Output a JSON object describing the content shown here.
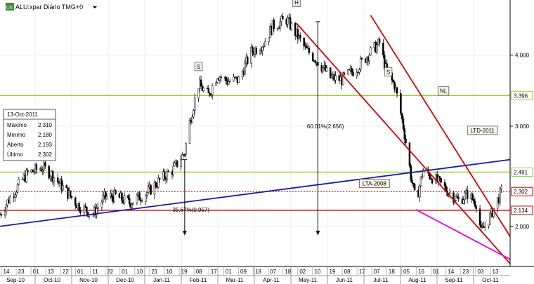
{
  "header": {
    "icon_text": "CEI",
    "title": "ALU:xpar Diário TMG+0",
    "menu_icon": "dropdown-arrow-icon"
  },
  "info_box": {
    "date": "13-Oct-2011",
    "rows": [
      {
        "label": "Máximo",
        "value": "2.310",
        "color": "#000000"
      },
      {
        "label": "Mínimo",
        "value": "2.180",
        "color": "#000000"
      },
      {
        "label": "Aberto",
        "value": "2.193",
        "color": "#000000"
      },
      {
        "label": "Último",
        "value": "2.302",
        "color": "#cc0000"
      }
    ]
  },
  "annotations": {
    "H": "H",
    "S1": "S",
    "S2": "S",
    "NL": "NL",
    "LTD": "LTD-2011",
    "LTA": "LTA-2008",
    "drop1": "60.01%(2.656)",
    "drop2": "35.67%(0.957)"
  },
  "chart_data": {
    "type": "candlestick",
    "y_scale": "log",
    "ylim": [
      1.7,
      5.0
    ],
    "y_ticks": [
      "2.000",
      "3.000",
      "4.000"
    ],
    "x_date_range": [
      "2010-09-09",
      "2011-10-20"
    ],
    "x_day_labels": [
      "14",
      "23",
      "01",
      "13",
      "22",
      "01",
      "11",
      "22",
      "01",
      "10",
      "21",
      "10",
      "19",
      "08",
      "17",
      "01",
      "09",
      "18",
      "07",
      "18",
      "02",
      "10",
      "19",
      "08",
      "17",
      "07",
      "18",
      "05",
      "16",
      "01",
      "14",
      "23",
      "03",
      "13"
    ],
    "x_month_labels": [
      "Sep-10",
      "Oct-10",
      "Nov-10",
      "Dec-10",
      "Jan-11",
      "Feb-11",
      "Mar-11",
      "Apr-11",
      "May-11",
      "Jun-11",
      "Jul-11",
      "Aug-11",
      "Sep-11",
      "Oct-11"
    ],
    "price_path": [
      [
        "2010-09-09",
        2.1
      ],
      [
        "2010-09-20",
        2.3
      ],
      [
        "2010-10-01",
        2.48
      ],
      [
        "2010-10-13",
        2.54
      ],
      [
        "2010-10-20",
        2.47
      ],
      [
        "2010-11-01",
        2.3
      ],
      [
        "2010-11-10",
        2.18
      ],
      [
        "2010-11-22",
        2.1
      ],
      [
        "2010-12-01",
        2.25
      ],
      [
        "2010-12-10",
        2.26
      ],
      [
        "2010-12-21",
        2.2
      ],
      [
        "2011-01-05",
        2.3
      ],
      [
        "2011-01-15",
        2.42
      ],
      [
        "2011-01-25",
        2.52
      ],
      [
        "2011-02-03",
        2.7
      ],
      [
        "2011-02-07",
        3.05
      ],
      [
        "2011-02-14",
        3.55
      ],
      [
        "2011-02-22",
        3.4
      ],
      [
        "2011-03-01",
        3.7
      ],
      [
        "2011-03-09",
        3.6
      ],
      [
        "2011-03-18",
        3.62
      ],
      [
        "2011-03-28",
        4.05
      ],
      [
        "2011-04-07",
        4.2
      ],
      [
        "2011-04-14",
        4.5
      ],
      [
        "2011-04-25",
        4.62
      ],
      [
        "2011-05-03",
        4.35
      ],
      [
        "2011-05-10",
        4.1
      ],
      [
        "2011-05-20",
        3.9
      ],
      [
        "2011-05-30",
        3.65
      ],
      [
        "2011-06-08",
        3.62
      ],
      [
        "2011-06-20",
        3.8
      ],
      [
        "2011-07-01",
        4.05
      ],
      [
        "2011-07-08",
        4.2
      ],
      [
        "2011-07-14",
        3.7
      ],
      [
        "2011-07-20",
        3.55
      ],
      [
        "2011-07-27",
        3.0
      ],
      [
        "2011-08-02",
        2.45
      ],
      [
        "2011-08-06",
        2.2
      ],
      [
        "2011-08-12",
        2.52
      ],
      [
        "2011-08-18",
        2.45
      ],
      [
        "2011-08-25",
        2.38
      ],
      [
        "2011-09-01",
        2.3
      ],
      [
        "2011-09-09",
        2.22
      ],
      [
        "2011-09-16",
        2.28
      ],
      [
        "2011-09-23",
        2.2
      ],
      [
        "2011-09-27",
        1.95
      ],
      [
        "2011-10-05",
        2.1
      ],
      [
        "2011-10-13",
        2.3
      ]
    ],
    "horizontal_lines": [
      {
        "value": 3.396,
        "label": "3.396",
        "color": "#99cc33",
        "style": "solid"
      },
      {
        "value": 2.491,
        "label": "2.491",
        "color": "#99cc33",
        "style": "solid"
      },
      {
        "value": 2.302,
        "label": "2.302",
        "color": "#cc0000",
        "style": "dotted"
      },
      {
        "value": 2.134,
        "label": "2.134",
        "color": "#cc0000",
        "style": "solid"
      }
    ],
    "trendlines": [
      {
        "name": "LTA-2008",
        "color": "#1a1aaa",
        "from": [
          "2010-09-09",
          2.0
        ],
        "to": [
          "2011-10-20",
          2.62
        ]
      },
      {
        "name": "LTD-2011 upper",
        "color": "#dd0000",
        "from": [
          "2011-07-01",
          4.7
        ],
        "to": [
          "2011-10-20",
          1.92
        ]
      },
      {
        "name": "LTD-2011 lower",
        "color": "#dd0000",
        "from": [
          "2011-05-03",
          4.55
        ],
        "to": [
          "2011-10-20",
          1.72
        ]
      },
      {
        "name": "support",
        "color": "#ee00dd",
        "from": [
          "2011-08-06",
          2.14
        ],
        "to": [
          "2011-10-20",
          1.75
        ]
      }
    ],
    "arrows": [
      {
        "label": "60.01%(2.656)",
        "date": "2011-05-20",
        "from": 4.58,
        "to": 1.93
      },
      {
        "label": "35.67%(0.957)",
        "date": "2011-02-03",
        "from": 2.62,
        "to": 1.93
      }
    ],
    "markers": [
      {
        "label": "H",
        "date": "2011-05-03",
        "value": 4.95
      },
      {
        "label": "S",
        "date": "2011-02-14",
        "value": 3.82
      },
      {
        "label": "S",
        "date": "2011-07-15",
        "value": 3.74
      },
      {
        "label": "NL",
        "date": "2011-08-28",
        "value": 3.46
      },
      {
        "label": "LTD-2011",
        "date": "2011-09-28",
        "value": 2.95
      },
      {
        "label": "LTA-2008",
        "date": "2011-07-04",
        "value": 2.38
      },
      {
        "label": "60.01%(2.656)",
        "date": "2011-05-26",
        "value": 3.0
      },
      {
        "label": "35.67%(0.957)",
        "date": "2011-02-08",
        "value": 2.14
      }
    ]
  }
}
